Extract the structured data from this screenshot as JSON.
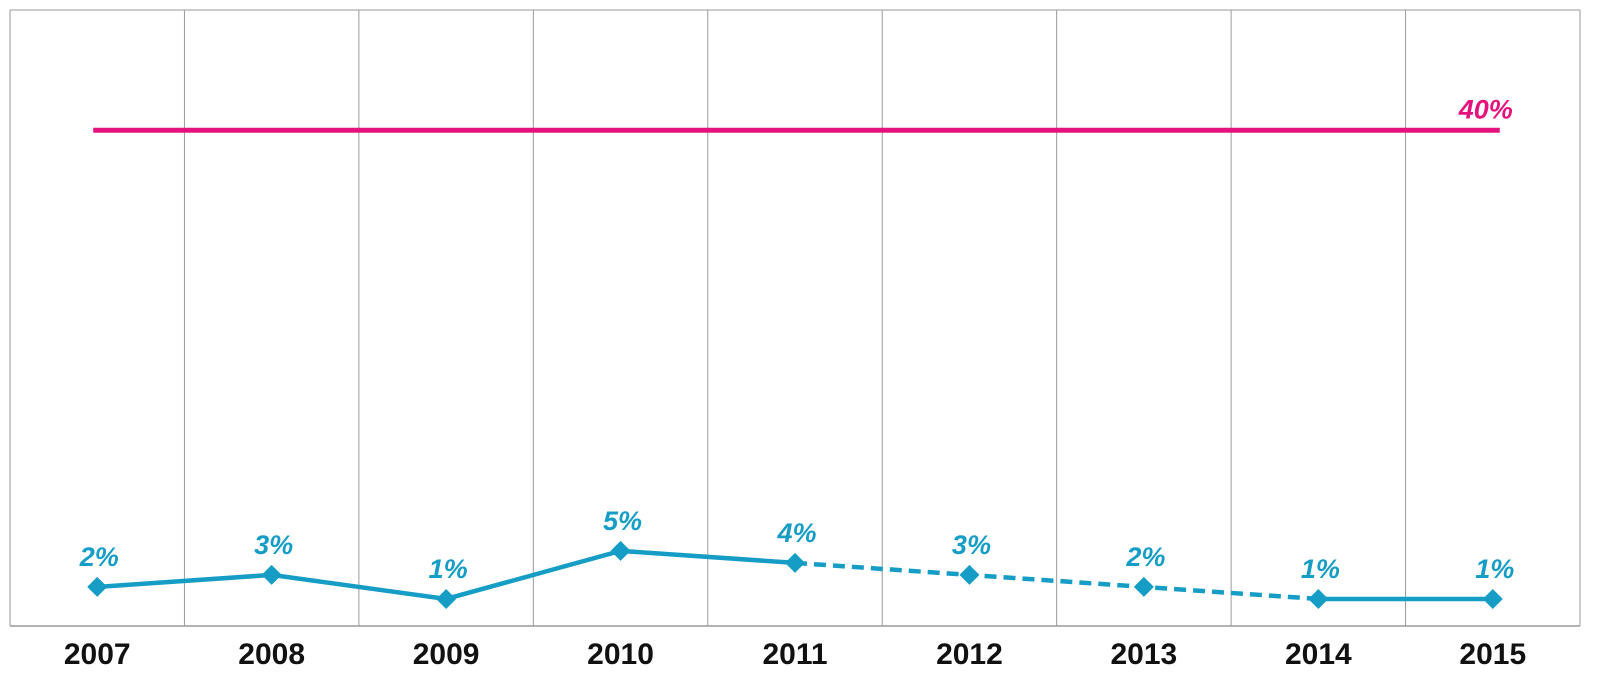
{
  "chart_data": {
    "type": "line",
    "categories": [
      "2007",
      "2008",
      "2009",
      "2010",
      "2011",
      "2012",
      "2013",
      "2014",
      "2015"
    ],
    "series": [
      {
        "color": "#159dc6",
        "values": [
          2,
          3,
          1,
          5,
          4,
          3,
          2,
          1,
          1
        ],
        "value_labels": [
          "2%",
          "3%",
          "1%",
          "5%",
          "4%",
          "3%",
          "2%",
          "1%",
          "1%"
        ]
      }
    ],
    "dashed_between": [
      4,
      7
    ],
    "reference_line": {
      "value": 40,
      "label": "40%",
      "color": "#e5127d"
    },
    "ylim": [
      -1.25,
      50
    ],
    "grid": true
  }
}
